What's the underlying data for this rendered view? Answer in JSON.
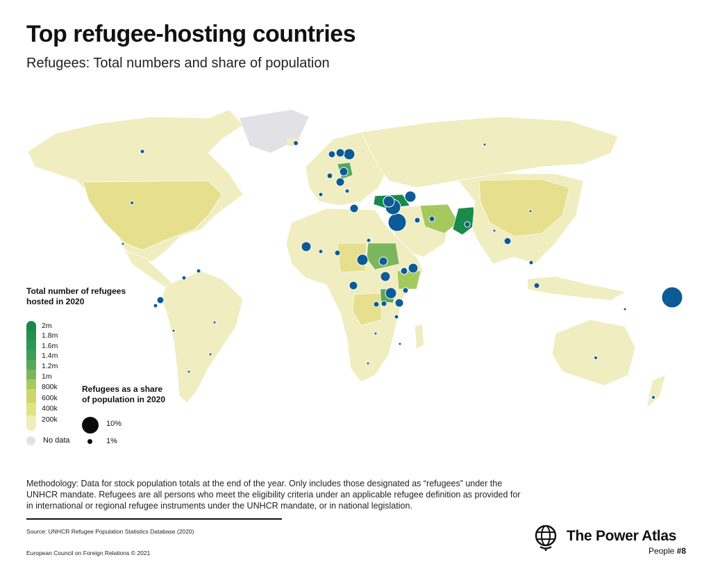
{
  "header": {
    "title": "Top refugee-hosting countries",
    "subtitle": "Refugees: Total numbers and share of population"
  },
  "legend": {
    "total_title_line1": "Total number of refugees",
    "total_title_line2": "hosted in 2020",
    "scale": [
      {
        "label": "2m",
        "color": "#1a8a4a"
      },
      {
        "label": "1.8m",
        "color": "#23904e"
      },
      {
        "label": "1.6m",
        "color": "#2e9752"
      },
      {
        "label": "1.4m",
        "color": "#3c9e56"
      },
      {
        "label": "1.2m",
        "color": "#55a95a"
      },
      {
        "label": "1m",
        "color": "#7cb65c"
      },
      {
        "label": "800k",
        "color": "#a6c95e"
      },
      {
        "label": "600k",
        "color": "#cad769"
      },
      {
        "label": "400k",
        "color": "#e2e285"
      },
      {
        "label": "200k",
        "color": "#f0edb6"
      }
    ],
    "no_data_label": "No data",
    "no_data_color": "#e2e2e6",
    "share_title_line1": "Refugees as a share",
    "share_title_line2": "of population in 2020",
    "share_big_label": "10%",
    "share_small_label": "1%"
  },
  "map_colors": {
    "land_base": "#f0edc0",
    "land_mid": "#e6e08e",
    "land_high": "#7cb65c",
    "land_top": "#1a8a4a",
    "no_data": "#e2e2e6",
    "bubble": "#0b5b96",
    "bubble_stroke": "#ffffff"
  },
  "footer": {
    "methodology": "Methodology: Data for stock population totals at the end of the year. Only includes those designated as “refugees” under the UNHCR mandate. Refugees are all persons who meet the eligibility criteria under an applicable refugee definition as provided for in international or regional refugee instruments under the UNHCR mandate, or in national legislation.",
    "source": "Source: UNHCR Refugee Population Statistics Database (2020)",
    "copyright": "European Council on Foreign Relations © 2021",
    "brand": "The Power Atlas",
    "people_prefix": "People ",
    "people_number": "#8"
  }
}
